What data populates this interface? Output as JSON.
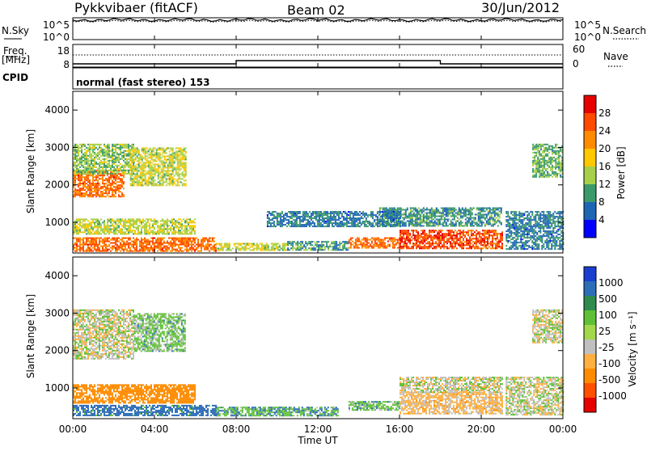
{
  "header": {
    "station": "Pykkvibaer (fitACF)",
    "beam": "Beam 02",
    "date": "30/Jun/2012"
  },
  "sky_panel": {
    "left_label": "N.Sky",
    "right_label": "N.Search",
    "left_ticks": [
      "10^5",
      "10^0"
    ],
    "right_ticks": [
      "10^5",
      "10^0"
    ]
  },
  "freq_panel": {
    "left_label_top": "Freq.",
    "left_label_bottom": "[MHz]",
    "right_label": "Nave",
    "left_ticks": [
      "18",
      "8"
    ],
    "right_ticks": [
      "60",
      "0"
    ]
  },
  "cpid": {
    "label": "CPID",
    "mode": "normal (fast stereo) 153"
  },
  "power_panel": {
    "ylabel": "Slant Range [km]",
    "cbar_label": "Power [dB]",
    "cbar_ticks": [
      "28",
      "24",
      "20",
      "16",
      "12",
      "8",
      "4"
    ],
    "cbar_colors": [
      "#e60000",
      "#ff4a00",
      "#ff8c00",
      "#ffc800",
      "#a6d04a",
      "#3c9a6a",
      "#1e66b4",
      "#0000ff"
    ]
  },
  "velocity_panel": {
    "ylabel": "Slant Range [km]",
    "cbar_label": "Velocity [m s⁻¹]",
    "cbar_ticks": [
      "1000",
      "500",
      "100",
      "25",
      "-25",
      "-100",
      "-500",
      "-1000"
    ],
    "cbar_colors": [
      "#1a3fd0",
      "#2e6db8",
      "#2f8a4e",
      "#5fc035",
      "#a2d84a",
      "#c0c0c0",
      "#ffb040",
      "#ff8c00",
      "#ff5000",
      "#e60000"
    ]
  },
  "time_axis": {
    "label": "Time UT",
    "ticks": [
      "00:00",
      "04:00",
      "08:00",
      "12:00",
      "16:00",
      "20:00",
      "00:00"
    ]
  },
  "chart_data": {
    "type": "heatmap",
    "x_range_hours": [
      0,
      24
    ],
    "y_range_km": [
      180,
      4500
    ],
    "y_ticks": [
      1000,
      2000,
      3000,
      4000
    ],
    "power_scale_db": [
      0,
      30
    ],
    "velocity_scale_ms": [
      -1000,
      1000
    ],
    "sky_noise_log10": 4.5,
    "search_noise_log10": 4.4,
    "frequency_segments": [
      {
        "start_h": 0.0,
        "end_h": 8.0,
        "freq_mhz": 10
      },
      {
        "start_h": 8.0,
        "end_h": 18.0,
        "freq_mhz": 12
      },
      {
        "start_h": 18.0,
        "end_h": 24.0,
        "freq_mhz": 10
      }
    ],
    "nave_level": 20,
    "power_blobs": [
      {
        "t0": 0.0,
        "t1": 2.5,
        "r0": 1700,
        "r1": 2400,
        "db": 24
      },
      {
        "t0": 0.0,
        "t1": 3.0,
        "r0": 2300,
        "r1": 3100,
        "db": 12
      },
      {
        "t0": 2.8,
        "t1": 5.5,
        "r0": 2000,
        "r1": 3000,
        "db": 14
      },
      {
        "t0": 0.0,
        "t1": 6.0,
        "r0": 700,
        "r1": 1100,
        "db": 14
      },
      {
        "t0": 0.0,
        "t1": 7.0,
        "r0": 250,
        "r1": 600,
        "db": 24
      },
      {
        "t0": 7.0,
        "t1": 10.5,
        "r0": 250,
        "r1": 450,
        "db": 14
      },
      {
        "t0": 10.5,
        "t1": 13.5,
        "r0": 250,
        "r1": 500,
        "db": 8
      },
      {
        "t0": 13.5,
        "t1": 16.0,
        "r0": 300,
        "r1": 600,
        "db": 24
      },
      {
        "t0": 16.0,
        "t1": 21.0,
        "r0": 300,
        "r1": 800,
        "db": 26
      },
      {
        "t0": 15.0,
        "t1": 21.0,
        "r0": 900,
        "r1": 1400,
        "db": 8
      },
      {
        "t0": 21.2,
        "t1": 24.0,
        "r0": 300,
        "r1": 1300,
        "db": 6
      },
      {
        "t0": 9.5,
        "t1": 16.0,
        "r0": 900,
        "r1": 1300,
        "db": 6
      },
      {
        "t0": 22.5,
        "t1": 24.0,
        "r0": 2200,
        "r1": 3100,
        "db": 10
      }
    ],
    "velocity_blobs": [
      {
        "t0": 0.0,
        "t1": 3.0,
        "r0": 1800,
        "r1": 3100,
        "v": 0
      },
      {
        "t0": 3.0,
        "t1": 5.5,
        "r0": 2000,
        "r1": 3000,
        "v": 50
      },
      {
        "t0": 0.0,
        "t1": 6.0,
        "r0": 600,
        "r1": 1100,
        "v": -300
      },
      {
        "t0": 0.0,
        "t1": 7.0,
        "r0": 250,
        "r1": 550,
        "v": 150
      },
      {
        "t0": 7.0,
        "t1": 13.0,
        "r0": 250,
        "r1": 500,
        "v": 80
      },
      {
        "t0": 13.5,
        "t1": 16.0,
        "r0": 400,
        "r1": 650,
        "v": 60
      },
      {
        "t0": 16.0,
        "t1": 21.0,
        "r0": 300,
        "r1": 900,
        "v": -50
      },
      {
        "t0": 16.0,
        "t1": 21.0,
        "r0": 900,
        "r1": 1300,
        "v": 0
      },
      {
        "t0": 21.2,
        "t1": 24.0,
        "r0": 300,
        "r1": 1300,
        "v": 0
      },
      {
        "t0": 22.5,
        "t1": 24.0,
        "r0": 2200,
        "r1": 3100,
        "v": 0
      }
    ]
  }
}
